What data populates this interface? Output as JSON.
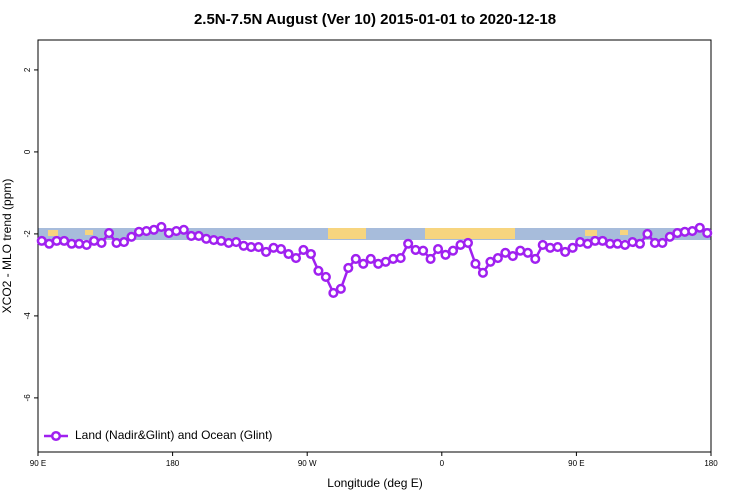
{
  "chart_data": {
    "type": "line",
    "title": "2.5N-7.5N August (Ver 10)   2015-01-01 to 2020-12-18",
    "x_label": "Longitude (deg E)",
    "y_label": "XCO2 - MLO trend (ppm)",
    "x": [
      92.5,
      97.5,
      102.5,
      107.5,
      112.5,
      117.5,
      122.5,
      127.5,
      132.5,
      137.5,
      142.5,
      147.5,
      152.5,
      157.5,
      162.5,
      167.5,
      172.5,
      177.5,
      182.5,
      187.5,
      192.5,
      197.5,
      202.5,
      207.5,
      212.5,
      217.5,
      222.5,
      227.5,
      232.5,
      237.5,
      242.5,
      247.5,
      252.5,
      257.5,
      262.5,
      267.5,
      272.5,
      277.5,
      282.5,
      287.5,
      292.5,
      297.5,
      302.5,
      307.5,
      312.5,
      317.5,
      322.5,
      327.5,
      332.5,
      337.5,
      342.5,
      347.5,
      352.5,
      357.5,
      362.5,
      367.5,
      372.5,
      377.5,
      382.5,
      387.5,
      392.5,
      397.5,
      402.5,
      407.5,
      412.5,
      417.5,
      422.5,
      427.5,
      432.5,
      437.5,
      442.5,
      447.5,
      452.5,
      457.5,
      462.5,
      467.5,
      472.5,
      477.5,
      482.5,
      487.5,
      492.5,
      497.5,
      502.5,
      507.5,
      512.5,
      517.5,
      522.5,
      527.5,
      532.5,
      537.5
    ],
    "series": [
      {
        "name": "Land (Nadir&Glint) and Ocean (Glint)",
        "color": "#a020f0",
        "values": [
          -2.17,
          -2.24,
          -2.17,
          -2.17,
          -2.24,
          -2.24,
          -2.27,
          -2.17,
          -2.22,
          -1.98,
          -2.22,
          -2.2,
          -2.07,
          -1.95,
          -1.93,
          -1.9,
          -1.83,
          -1.98,
          -1.93,
          -1.9,
          -2.05,
          -2.05,
          -2.12,
          -2.15,
          -2.17,
          -2.22,
          -2.2,
          -2.29,
          -2.32,
          -2.32,
          -2.44,
          -2.34,
          -2.37,
          -2.49,
          -2.59,
          -2.39,
          -2.49,
          -2.9,
          -3.05,
          -3.44,
          -3.34,
          -2.83,
          -2.61,
          -2.73,
          -2.61,
          -2.73,
          -2.68,
          -2.61,
          -2.59,
          -2.24,
          -2.39,
          -2.41,
          -2.61,
          -2.37,
          -2.51,
          -2.41,
          -2.27,
          -2.22,
          -2.73,
          -2.95,
          -2.68,
          -2.59,
          -2.46,
          -2.54,
          -2.41,
          -2.46,
          -2.61,
          -2.27,
          -2.34,
          -2.32,
          -2.44,
          -2.34,
          -2.2,
          -2.24,
          -2.17,
          -2.17,
          -2.24,
          -2.24,
          -2.27,
          -2.2,
          -2.24,
          -2.0,
          -2.22,
          -2.22,
          -2.07,
          -1.98,
          -1.95,
          -1.93,
          -1.85,
          -1.98
        ]
      }
    ],
    "xlim": [
      90,
      540
    ],
    "xticks": [
      {
        "value": 90,
        "label": "90 E"
      },
      180,
      {
        "value": 270,
        "label": "90 W"
      },
      {
        "value": 360,
        "label": "0"
      },
      {
        "value": 450,
        "label": "90 E"
      },
      {
        "value": 540,
        "label": "180"
      }
    ],
    "ylim": [
      -7.32,
      2.73
    ],
    "yticks": [
      -6,
      -4,
      -2,
      0,
      2
    ],
    "legend": "bottom-left"
  }
}
